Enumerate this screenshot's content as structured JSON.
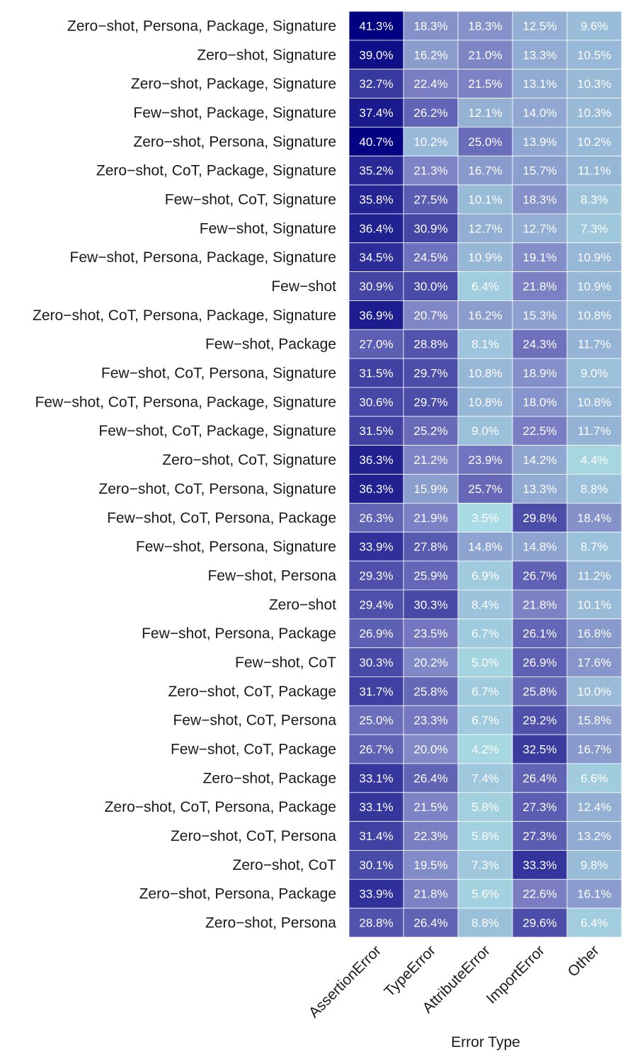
{
  "chart_data": {
    "type": "heatmap",
    "xlabel": "Error Type",
    "ylabel": "",
    "columns": [
      "AssertionError",
      "TypeError",
      "AttributeError",
      "ImportError",
      "Other"
    ],
    "rows": [
      "Zero−shot, Persona, Package, Signature",
      "Zero−shot, Signature",
      "Zero−shot, Package, Signature",
      "Few−shot, Package, Signature",
      "Zero−shot, Persona, Signature",
      "Zero−shot, CoT, Package, Signature",
      "Few−shot, CoT, Signature",
      "Few−shot, Signature",
      "Few−shot, Persona, Package, Signature",
      "Few−shot",
      "Zero−shot, CoT, Persona, Package, Signature",
      "Few−shot, Package",
      "Few−shot, CoT, Persona, Signature",
      "Few−shot, CoT, Persona, Package, Signature",
      "Few−shot, CoT, Package, Signature",
      "Zero−shot, CoT, Signature",
      "Zero−shot, CoT, Persona, Signature",
      "Few−shot, CoT, Persona, Package",
      "Few−shot, Persona, Signature",
      "Few−shot, Persona",
      "Zero−shot",
      "Few−shot, Persona, Package",
      "Few−shot, CoT",
      "Zero−shot, CoT, Package",
      "Few−shot, CoT, Persona",
      "Few−shot, CoT, Package",
      "Zero−shot, Package",
      "Zero−shot, CoT, Persona, Package",
      "Zero−shot, CoT, Persona",
      "Zero−shot, CoT",
      "Zero−shot, Persona, Package",
      "Zero−shot, Persona"
    ],
    "values": [
      [
        41.3,
        18.3,
        18.3,
        12.5,
        9.6
      ],
      [
        39.0,
        16.2,
        21.0,
        13.3,
        10.5
      ],
      [
        32.7,
        22.4,
        21.5,
        13.1,
        10.3
      ],
      [
        37.4,
        26.2,
        12.1,
        14.0,
        10.3
      ],
      [
        40.7,
        10.2,
        25.0,
        13.9,
        10.2
      ],
      [
        35.2,
        21.3,
        16.7,
        15.7,
        11.1
      ],
      [
        35.8,
        27.5,
        10.1,
        18.3,
        8.3
      ],
      [
        36.4,
        30.9,
        12.7,
        12.7,
        7.3
      ],
      [
        34.5,
        24.5,
        10.9,
        19.1,
        10.9
      ],
      [
        30.9,
        30.0,
        6.4,
        21.8,
        10.9
      ],
      [
        36.9,
        20.7,
        16.2,
        15.3,
        10.8
      ],
      [
        27.0,
        28.8,
        8.1,
        24.3,
        11.7
      ],
      [
        31.5,
        29.7,
        10.8,
        18.9,
        9.0
      ],
      [
        30.6,
        29.7,
        10.8,
        18.0,
        10.8
      ],
      [
        31.5,
        25.2,
        9.0,
        22.5,
        11.7
      ],
      [
        36.3,
        21.2,
        23.9,
        14.2,
        4.4
      ],
      [
        36.3,
        15.9,
        25.7,
        13.3,
        8.8
      ],
      [
        26.3,
        21.9,
        3.5,
        29.8,
        18.4
      ],
      [
        33.9,
        27.8,
        14.8,
        14.8,
        8.7
      ],
      [
        29.3,
        25.9,
        6.9,
        26.7,
        11.2
      ],
      [
        29.4,
        30.3,
        8.4,
        21.8,
        10.1
      ],
      [
        26.9,
        23.5,
        6.7,
        26.1,
        16.8
      ],
      [
        30.3,
        20.2,
        5.0,
        26.9,
        17.6
      ],
      [
        31.7,
        25.8,
        6.7,
        25.8,
        10.0
      ],
      [
        25.0,
        23.3,
        6.7,
        29.2,
        15.8
      ],
      [
        26.7,
        20.0,
        4.2,
        32.5,
        16.7
      ],
      [
        33.1,
        26.4,
        7.4,
        26.4,
        6.6
      ],
      [
        33.1,
        21.5,
        5.8,
        27.3,
        12.4
      ],
      [
        31.4,
        22.3,
        5.8,
        27.3,
        13.2
      ],
      [
        30.1,
        19.5,
        7.3,
        33.3,
        9.8
      ],
      [
        33.9,
        21.8,
        5.6,
        22.6,
        16.1
      ],
      [
        28.8,
        26.4,
        8.8,
        29.6,
        6.4
      ]
    ],
    "value_suffix": "%",
    "color_scale": {
      "low": "#a8dbe3",
      "mid": "#7b7ec3",
      "high": "#000080",
      "range": [
        3.5,
        41.3
      ]
    },
    "legend": "none",
    "grid": false
  }
}
